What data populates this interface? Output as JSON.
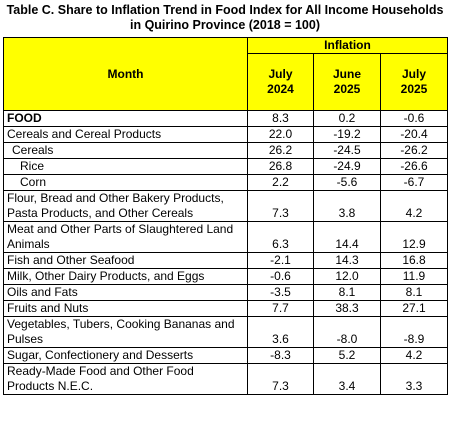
{
  "title": "Table C. Share to Inflation Trend in Food Index for All Income Households in Quirino Province (2018 = 100)",
  "table": {
    "header": {
      "month": "Month",
      "group": "Inflation",
      "columns": [
        "July\n2024",
        "June\n2025",
        "July\n2025"
      ]
    },
    "rows": [
      {
        "label": "FOOD",
        "values": [
          "8.3",
          "0.2",
          "-0.6"
        ]
      },
      {
        "label": "Cereals and Cereal Products",
        "values": [
          "22.0",
          "-19.2",
          "-20.4"
        ]
      },
      {
        "label": "Cereals",
        "values": [
          "26.2",
          "-24.5",
          "-26.2"
        ]
      },
      {
        "label": "Rice",
        "values": [
          "26.8",
          "-24.9",
          "-26.6"
        ]
      },
      {
        "label": "Corn",
        "values": [
          "2.2",
          "-5.6",
          "-6.7"
        ]
      },
      {
        "label": "Flour, Bread and Other Bakery Products, Pasta Products, and Other Cereals",
        "values": [
          "7.3",
          "3.8",
          "4.2"
        ]
      },
      {
        "label": "Meat and Other Parts of Slaughtered Land Animals",
        "values": [
          "6.3",
          "14.4",
          "12.9"
        ]
      },
      {
        "label": "Fish and Other Seafood",
        "values": [
          "-2.1",
          "14.3",
          "16.8"
        ]
      },
      {
        "label": "Milk, Other Dairy Products, and Eggs",
        "values": [
          "-0.6",
          "12.0",
          "11.9"
        ]
      },
      {
        "label": "Oils and Fats",
        "values": [
          "-3.5",
          "8.1",
          "8.1"
        ]
      },
      {
        "label": "Fruits and Nuts",
        "values": [
          "7.7",
          "38.3",
          "27.1"
        ]
      },
      {
        "label": "Vegetables, Tubers, Cooking Bananas and Pulses",
        "values": [
          "3.6",
          "-8.0",
          "-8.9"
        ]
      },
      {
        "label": "Sugar, Confectionery and Desserts",
        "values": [
          "-8.3",
          "5.2",
          "4.2"
        ]
      },
      {
        "label": "Ready-Made Food and Other Food Products N.E.C.",
        "values": [
          "7.3",
          "3.4",
          "3.3"
        ]
      }
    ]
  }
}
